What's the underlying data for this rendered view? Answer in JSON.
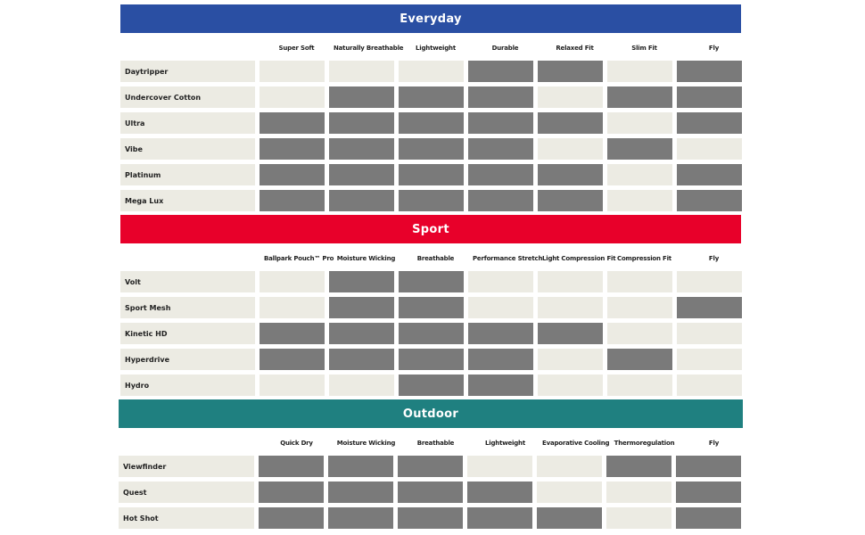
{
  "colors": {
    "everyday": "#2a4fa3",
    "sport": "#e8002a",
    "outdoor": "#1f8080",
    "feature_on": "#7a7a7a",
    "feature_off": "#ecebe3"
  },
  "sections": [
    {
      "title": "Everyday",
      "color_key": "everyday",
      "columns": [
        "Super Soft",
        "Naturally Breathable",
        "Lightweight",
        "Durable",
        "Relaxed Fit",
        "Slim Fit",
        "Fly"
      ],
      "rows": [
        {
          "name": "Daytripper",
          "features": [
            0,
            0,
            0,
            1,
            1,
            0,
            1
          ]
        },
        {
          "name": "Undercover Cotton",
          "features": [
            0,
            1,
            1,
            1,
            0,
            1,
            1
          ]
        },
        {
          "name": "Ultra",
          "features": [
            1,
            1,
            1,
            1,
            1,
            0,
            1
          ]
        },
        {
          "name": "Vibe",
          "features": [
            1,
            1,
            1,
            1,
            0,
            1,
            0
          ]
        },
        {
          "name": "Platinum",
          "features": [
            1,
            1,
            1,
            1,
            1,
            0,
            1
          ]
        },
        {
          "name": "Mega Lux",
          "features": [
            1,
            1,
            1,
            1,
            1,
            0,
            1
          ]
        }
      ]
    },
    {
      "title": "Sport",
      "color_key": "sport",
      "columns": [
        "Ballpark Pouch™ Pro",
        "Moisture Wicking",
        "Breathable",
        "Performance Stretch",
        "Light Compression Fit",
        "Compression Fit",
        "Fly"
      ],
      "rows": [
        {
          "name": "Volt",
          "features": [
            0,
            1,
            1,
            0,
            0,
            0,
            0
          ]
        },
        {
          "name": "Sport Mesh",
          "features": [
            0,
            1,
            1,
            0,
            0,
            0,
            1
          ]
        },
        {
          "name": "Kinetic HD",
          "features": [
            1,
            1,
            1,
            1,
            1,
            0,
            0
          ]
        },
        {
          "name": "Hyperdrive",
          "features": [
            1,
            1,
            1,
            1,
            0,
            1,
            0
          ]
        },
        {
          "name": "Hydro",
          "features": [
            0,
            0,
            1,
            1,
            0,
            0,
            0
          ]
        }
      ]
    },
    {
      "title": "Outdoor",
      "color_key": "outdoor",
      "columns": [
        "Quick Dry",
        "Moisture Wicking",
        "Breathable",
        "Lightweight",
        "Evaporative Cooling",
        "Thermoregulation",
        "Fly"
      ],
      "rows": [
        {
          "name": "Viewfinder",
          "features": [
            1,
            1,
            1,
            0,
            0,
            1,
            1
          ]
        },
        {
          "name": "Quest",
          "features": [
            1,
            1,
            1,
            1,
            0,
            0,
            1
          ]
        },
        {
          "name": "Hot Shot",
          "features": [
            1,
            1,
            1,
            1,
            1,
            0,
            1
          ]
        }
      ]
    }
  ]
}
